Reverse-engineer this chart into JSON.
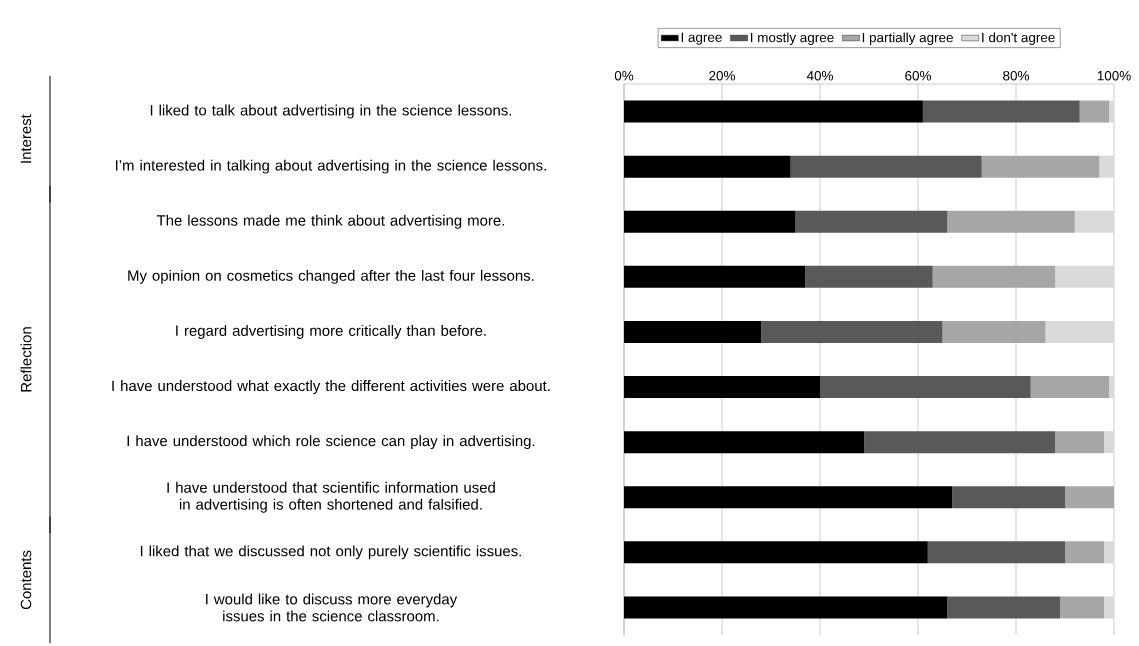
{
  "chart_data": {
    "type": "bar",
    "orientation": "horizontal",
    "stacked": true,
    "grid": "x",
    "legend": "top",
    "categories": [
      "I liked to talk about advertising in the science lessons.",
      "I’m interested in talking about advertising in the science lessons.",
      "The lessons made me think about advertising more.",
      "My opinion on cosmetics changed after the last four lessons.",
      "I regard advertising more critically than before.",
      "I have understood what exactly the different activities were about.",
      "I have understood which role science can play in advertising.",
      "I have understood that scientific information used in advertising is often shortened and falsified.",
      "I liked that we discussed not only purely scientific issues.",
      "I would like to discuss more everyday issues in the science classroom."
    ],
    "series": [
      {
        "name": "I agree",
        "color": "#000000",
        "values": [
          61,
          34,
          35,
          37,
          28,
          40,
          49,
          67,
          62,
          66
        ]
      },
      {
        "name": "I mostly agree",
        "color": "#595959",
        "values": [
          32,
          39,
          31,
          26,
          37,
          43,
          39,
          23,
          28,
          23
        ]
      },
      {
        "name": "I partially agree",
        "color": "#a6a6a6",
        "values": [
          6,
          24,
          26,
          25,
          21,
          16,
          10,
          10,
          8,
          9
        ]
      },
      {
        "name": "I don't agree",
        "color": "#d9d9d9",
        "values": [
          1,
          3,
          8,
          12,
          14,
          1,
          2,
          0,
          2,
          2
        ]
      }
    ],
    "xlim": [
      0,
      100
    ],
    "xticks": [
      {
        "value": 0,
        "label": "0%"
      },
      {
        "value": 20,
        "label": "20%"
      },
      {
        "value": 40,
        "label": "40%"
      },
      {
        "value": 60,
        "label": "60%"
      },
      {
        "value": 80,
        "label": "80%"
      },
      {
        "value": 100,
        "label": "100%"
      }
    ],
    "annotations": [
      "Interest",
      "Reflection",
      "Contents"
    ]
  }
}
